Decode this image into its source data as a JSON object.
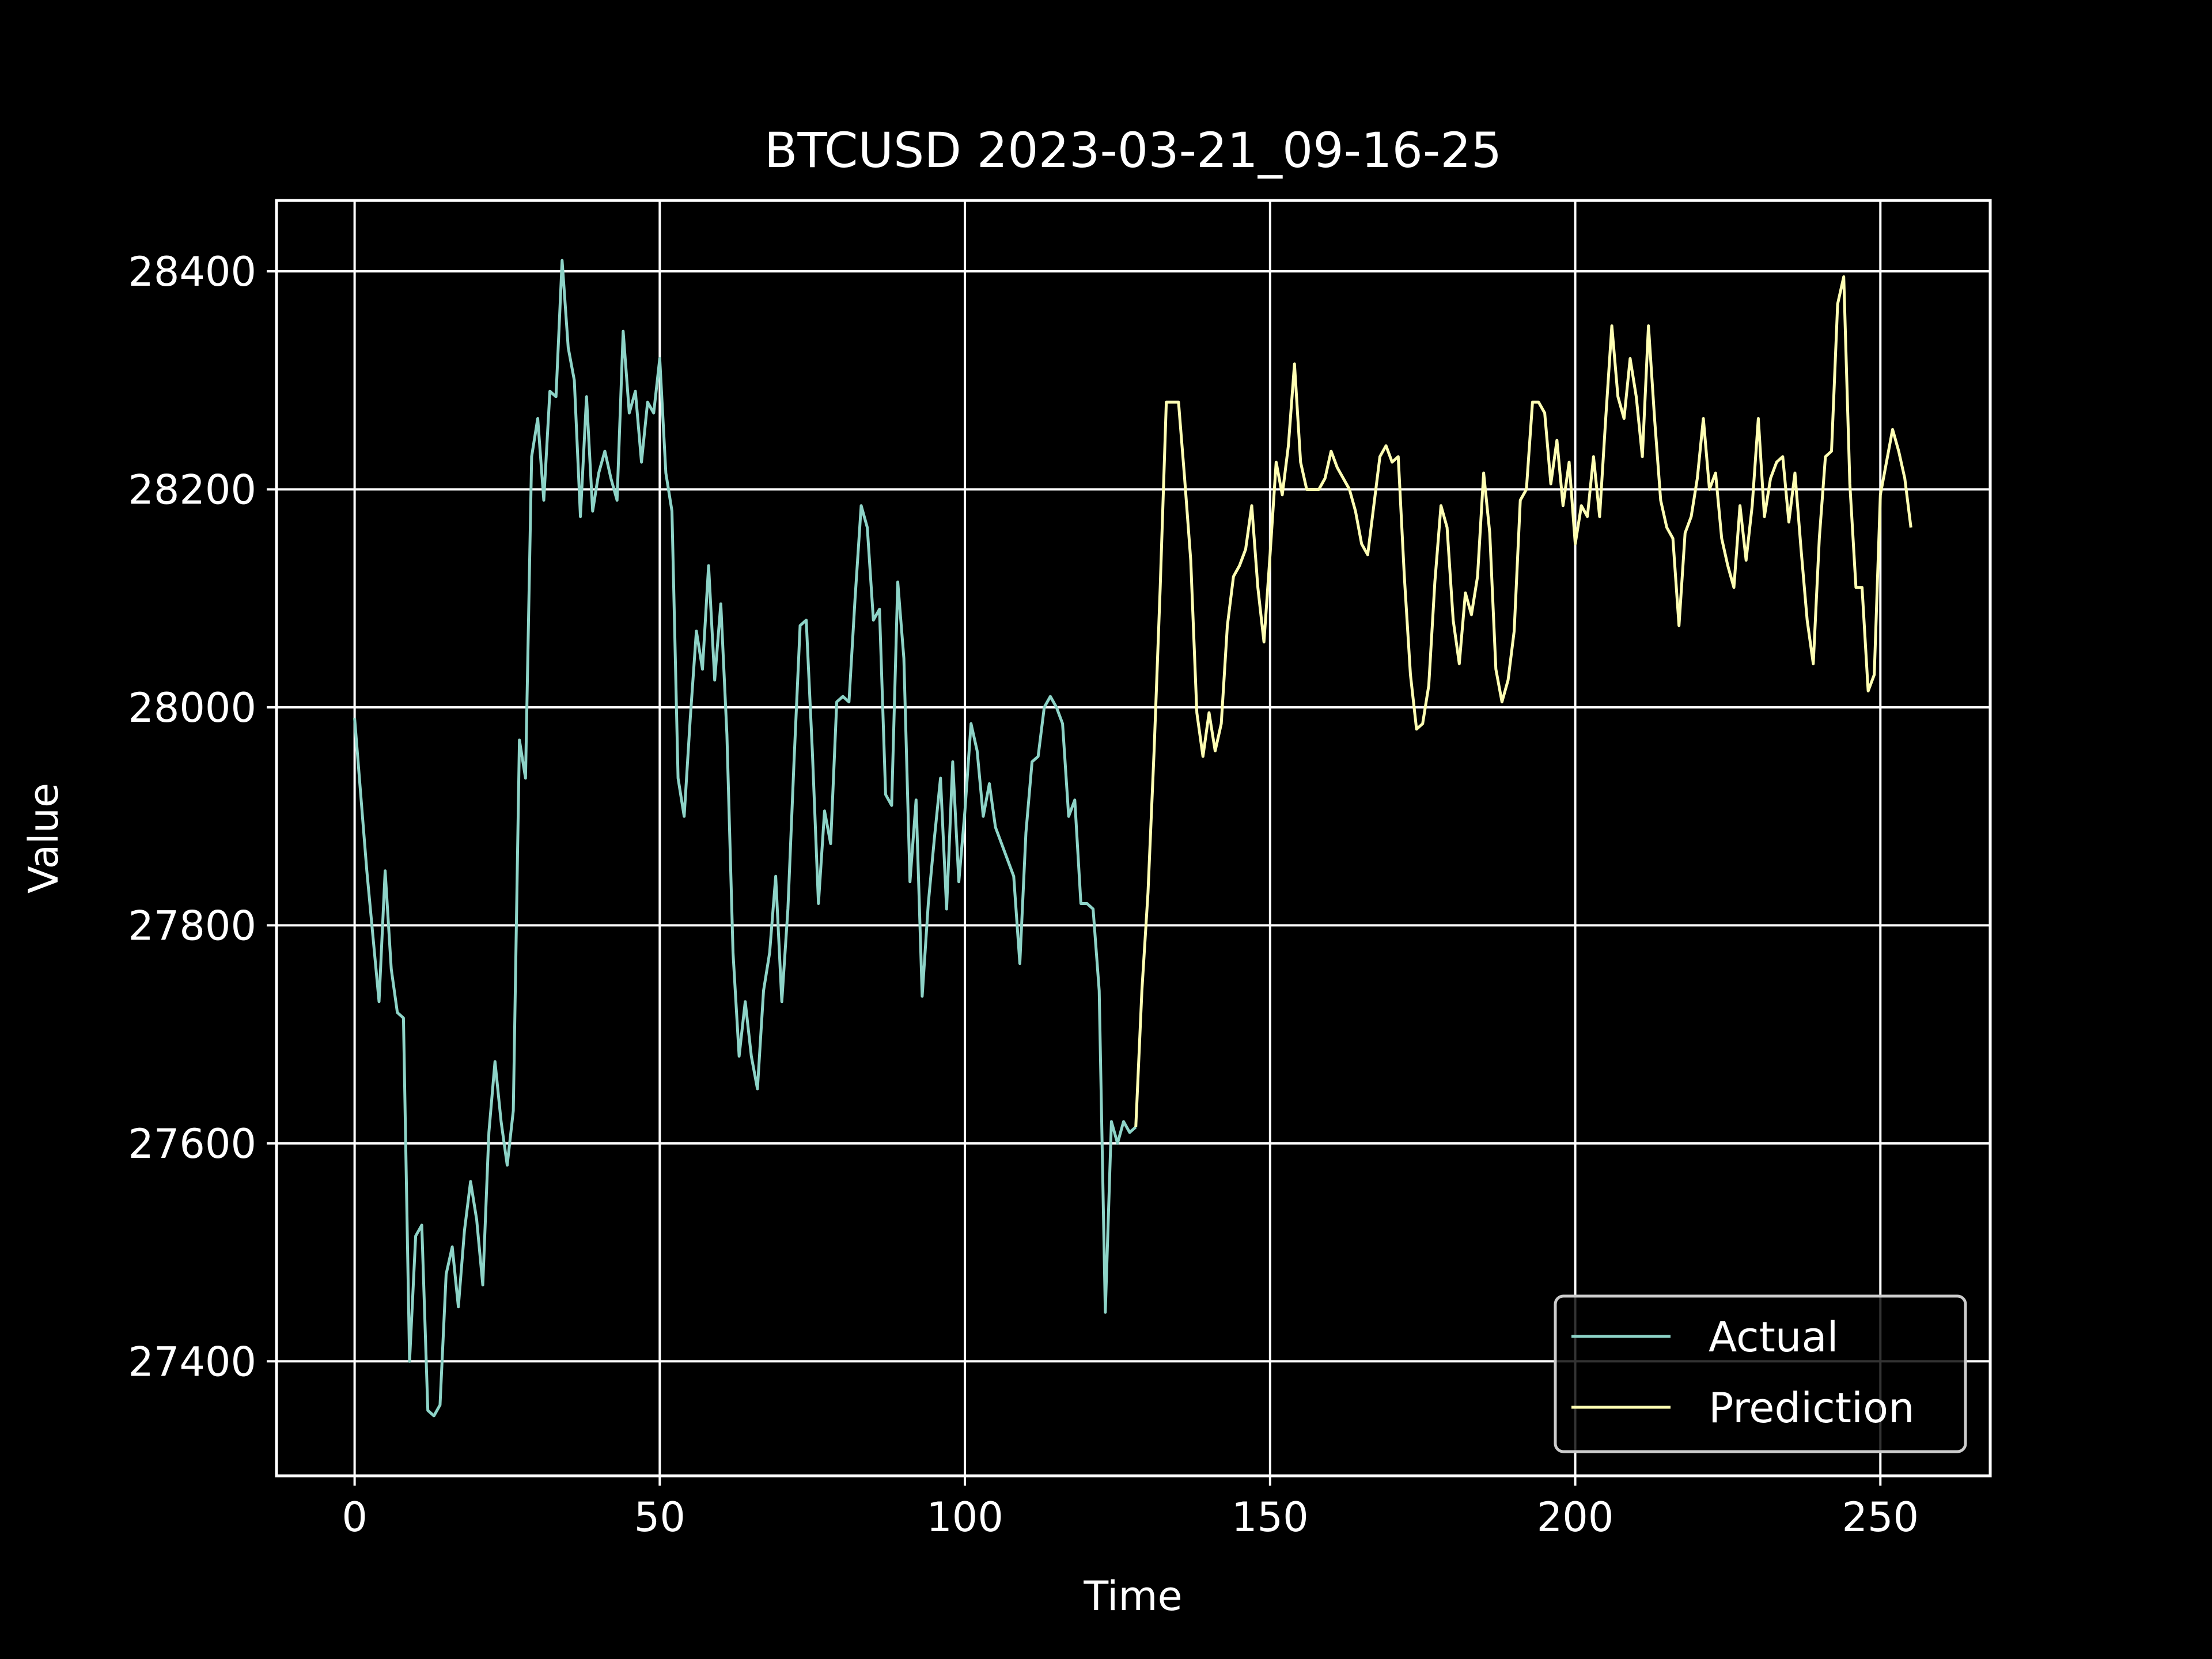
{
  "chart_data": {
    "type": "line",
    "title": "BTCUSD 2023-03-21_09-16-25",
    "xlabel": "Time",
    "ylabel": "Value",
    "xlim": [
      -12.8,
      268
    ],
    "ylim": [
      27295,
      28465
    ],
    "xticks": [
      0,
      50,
      100,
      150,
      200,
      250
    ],
    "yticks": [
      27400,
      27600,
      27800,
      28000,
      28200,
      28400
    ],
    "grid": true,
    "legend_position": "lower right",
    "series": [
      {
        "name": "Actual",
        "color": "#8dd3c7",
        "x_start": 0,
        "values": [
          27990,
          27920,
          27850,
          27790,
          27730,
          27850,
          27760,
          27720,
          27715,
          27400,
          27515,
          27525,
          27355,
          27350,
          27360,
          27480,
          27505,
          27450,
          27520,
          27565,
          27530,
          27470,
          27610,
          27675,
          27620,
          27580,
          27630,
          27970,
          27935,
          28230,
          28265,
          28190,
          28290,
          28285,
          28410,
          28330,
          28300,
          28175,
          28285,
          28180,
          28215,
          28235,
          28210,
          28190,
          28345,
          28270,
          28290,
          28225,
          28280,
          28270,
          28320,
          28215,
          28180,
          27935,
          27900,
          27990,
          28070,
          28035,
          28130,
          28025,
          28095,
          27975,
          27775,
          27680,
          27730,
          27680,
          27650,
          27740,
          27775,
          27845,
          27730,
          27815,
          27950,
          28075,
          28080,
          27960,
          27820,
          27905,
          27875,
          28005,
          28010,
          28005,
          28100,
          28185,
          28165,
          28080,
          28090,
          27920,
          27910,
          28115,
          28045,
          27840,
          27915,
          27735,
          27820,
          27880,
          27935,
          27815,
          27950,
          27840,
          27905,
          27985,
          27960,
          27900,
          27930,
          27890,
          27875,
          27860,
          27845,
          27765,
          27885,
          27950,
          27955,
          28000,
          28010,
          28000,
          27985,
          27900,
          27915,
          27820,
          27820,
          27815,
          27740,
          27445,
          27620,
          27600,
          27620,
          27610,
          27615
        ]
      },
      {
        "name": "Prediction",
        "color": "#ffffb3",
        "x_start": 128,
        "values": [
          27615,
          27740,
          27830,
          27960,
          28110,
          28280,
          28280,
          28280,
          28210,
          28135,
          27995,
          27955,
          27995,
          27960,
          27985,
          28075,
          28120,
          28130,
          28145,
          28185,
          28110,
          28060,
          28140,
          28225,
          28195,
          28240,
          28315,
          28225,
          28200,
          28200,
          28200,
          28210,
          28235,
          28220,
          28210,
          28200,
          28180,
          28150,
          28140,
          28185,
          28230,
          28240,
          28225,
          28230,
          28120,
          28030,
          27980,
          27985,
          28020,
          28115,
          28185,
          28165,
          28080,
          28040,
          28105,
          28085,
          28120,
          28215,
          28160,
          28035,
          28005,
          28025,
          28070,
          28190,
          28200,
          28280,
          28280,
          28270,
          28205,
          28245,
          28185,
          28225,
          28150,
          28185,
          28175,
          28230,
          28175,
          28265,
          28350,
          28285,
          28265,
          28320,
          28285,
          28230,
          28350,
          28265,
          28190,
          28165,
          28155,
          28075,
          28160,
          28175,
          28210,
          28265,
          28200,
          28215,
          28155,
          28130,
          28110,
          28185,
          28135,
          28185,
          28265,
          28175,
          28210,
          28225,
          28230,
          28170,
          28215,
          28145,
          28080,
          28040,
          28155,
          28230,
          28235,
          28370,
          28395,
          28205,
          28110,
          28110,
          28015,
          28030,
          28195,
          28225,
          28255,
          28235,
          28210,
          28165
        ]
      }
    ]
  }
}
